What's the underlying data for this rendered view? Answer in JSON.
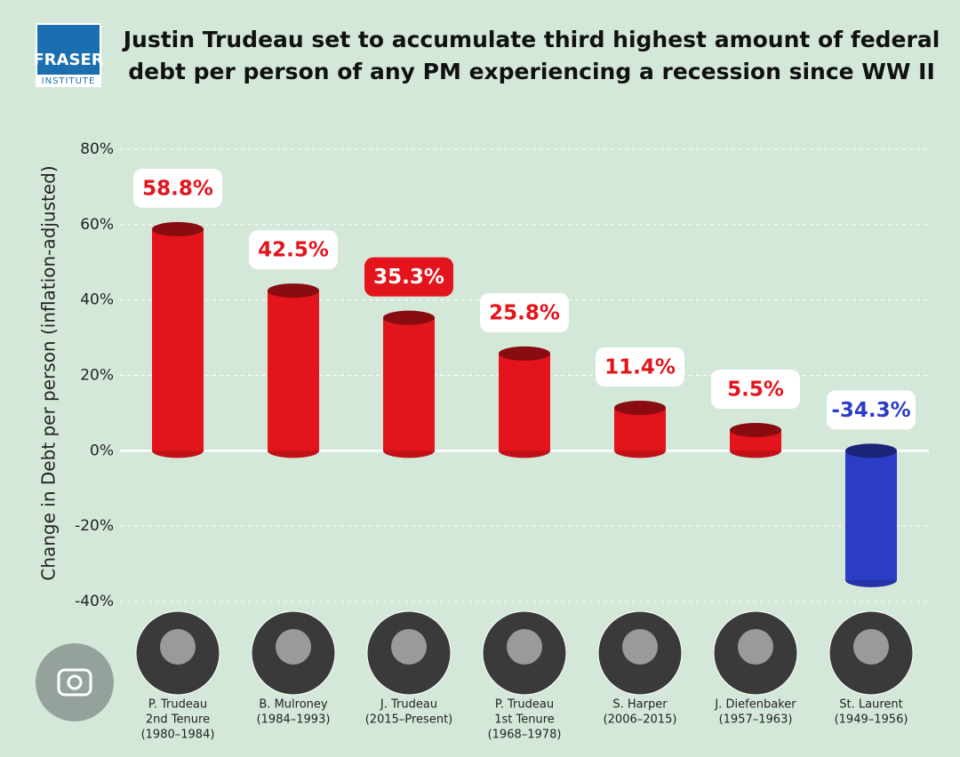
{
  "logo": {
    "name": "FRASER",
    "sub": "INSTITUTE"
  },
  "chart_data": {
    "type": "bar",
    "title": [
      "Justin Trudeau set to accumulate third highest amount of federal",
      "debt per person of any PM experiencing a recession since WW II"
    ],
    "y_label": "Change in Debt per person (inflation-adjusted)",
    "categories": [
      [
        "P. Trudeau",
        "2nd Tenure",
        "(1980–1984)"
      ],
      [
        "B. Mulroney",
        "(1984–1993)"
      ],
      [
        "J. Trudeau",
        "(2015–Present)"
      ],
      [
        "P. Trudeau",
        "1st Tenure",
        "(1968–1978)"
      ],
      [
        "S. Harper",
        "(2006–2015)"
      ],
      [
        "J. Diefenbaker",
        "(1957–1963)"
      ],
      [
        "St. Laurent",
        "(1949–1956)"
      ]
    ],
    "values": [
      58.8,
      42.5,
      35.3,
      25.8,
      11.4,
      5.5,
      -34.3
    ],
    "value_labels": [
      "58.8%",
      "42.5%",
      "35.3%",
      "25.8%",
      "11.4%",
      "5.5%",
      "-34.3%"
    ],
    "colors": [
      "#e3141b",
      "#e3141b",
      "#e3141b",
      "#e3141b",
      "#e3141b",
      "#e3141b",
      "#2b3cc6"
    ],
    "highlight_index": 2,
    "ylim": [
      -40,
      80
    ],
    "yticks": [
      {
        "value": -40,
        "label": "-40%"
      },
      {
        "value": -20,
        "label": "-20%"
      },
      {
        "value": 0,
        "label": "0%"
      },
      {
        "value": 20,
        "label": "20%"
      },
      {
        "value": 40,
        "label": "40%"
      },
      {
        "value": 60,
        "label": "60%"
      },
      {
        "value": 80,
        "label": "80%"
      }
    ],
    "grid": true
  }
}
